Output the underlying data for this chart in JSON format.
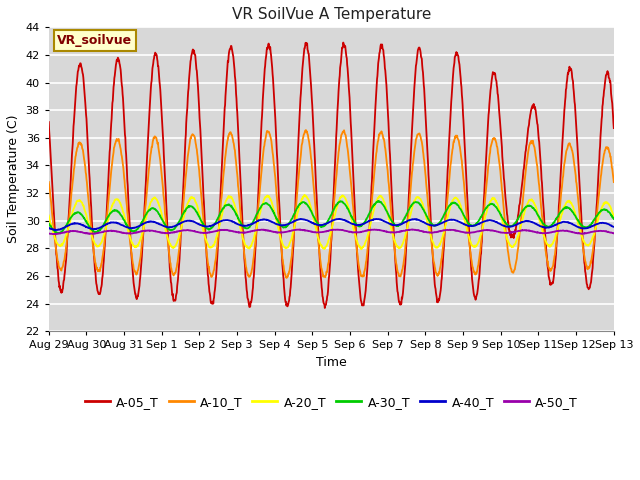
{
  "title": "VR SoilVue A Temperature",
  "xlabel": "Time",
  "ylabel": "Soil Temperature (C)",
  "ylim": [
    22,
    44
  ],
  "fig_bg_color": "#ffffff",
  "plot_bg_color": "#d8d8d8",
  "grid_color": "#ffffff",
  "annotation_text": "VR_soilvue",
  "annotation_bg": "#ffffcc",
  "annotation_border": "#aa8800",
  "annotation_text_color": "#800000",
  "series_names": [
    "A-05_T",
    "A-10_T",
    "A-20_T",
    "A-30_T",
    "A-40_T",
    "A-50_T"
  ],
  "series_colors": [
    "#cc0000",
    "#ff8800",
    "#ffff00",
    "#00cc00",
    "#0000cc",
    "#9900aa"
  ],
  "xtick_labels": [
    "Aug 29",
    "Aug 30",
    "Aug 31",
    "Sep 1",
    "Sep 2",
    "Sep 3",
    "Sep 4",
    "Sep 5",
    "Sep 6",
    "Sep 7",
    "Sep 8",
    "Sep 9",
    "Sep 10",
    "Sep 11",
    "Sep 12",
    "Sep 13"
  ],
  "n_days": 15,
  "samples_per_day": 96,
  "title_fontsize": 11,
  "axis_label_fontsize": 9,
  "tick_fontsize": 8,
  "legend_fontsize": 9
}
